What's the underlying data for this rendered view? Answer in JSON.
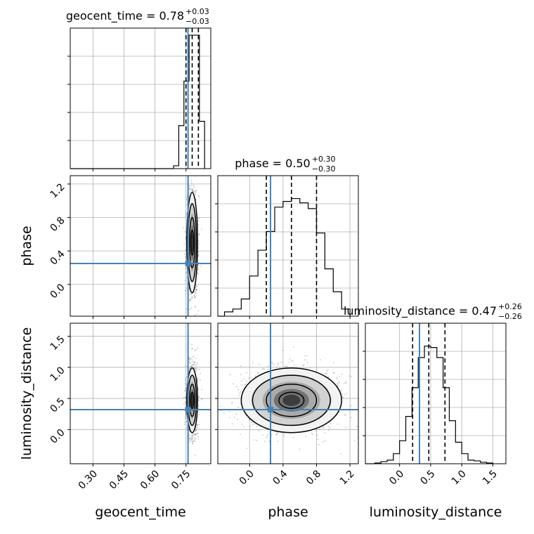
{
  "chart_data": {
    "type": "corner",
    "parameters": [
      "geocent_time",
      "phase",
      "luminosity_distance"
    ],
    "truths": {
      "geocent_time": 0.76,
      "phase": 0.25,
      "luminosity_distance": 0.32
    },
    "colors": {
      "truth": "#4682b4",
      "hist": "#000000",
      "grid": "#b0b0b0",
      "scatter": "#555555"
    },
    "titles": {
      "geocent_time": {
        "text": "geocent_time = 0.78",
        "plus": "+0.03",
        "minus": "−0.03"
      },
      "phase": {
        "text": "phase = 0.50",
        "plus": "+0.30",
        "minus": "−0.30"
      },
      "luminosity_distance": {
        "text": "luminosity_distance = 0.47",
        "plus": "+0.26",
        "minus": "−0.26"
      }
    },
    "ranges": {
      "geocent_time": [
        0.19,
        0.87
      ],
      "phase": [
        -0.38,
        1.3
      ],
      "luminosity_distance": [
        -0.55,
        1.71
      ]
    },
    "ticks": {
      "geocent_time": {
        "values": [
          0.3,
          0.45,
          0.6,
          0.75
        ],
        "labels": [
          "0.30",
          "0.45",
          "0.60",
          "0.75"
        ]
      },
      "phase": {
        "values": [
          0.0,
          0.4,
          0.8,
          1.2
        ],
        "labels": [
          "0.0",
          "0.4",
          "0.8",
          "1.2"
        ]
      },
      "luminosity_distance": {
        "values": [
          0.0,
          0.5,
          1.0,
          1.5
        ],
        "labels": [
          "0.0",
          "0.5",
          "1.0",
          "1.5"
        ]
      }
    },
    "quantiles": {
      "geocent_time": [
        0.75,
        0.78,
        0.81
      ],
      "phase": [
        0.2,
        0.5,
        0.8
      ],
      "luminosity_distance": [
        0.21,
        0.47,
        0.73
      ]
    },
    "histograms": {
      "geocent_time": {
        "edges": [
          0.69,
          0.715,
          0.74,
          0.765,
          0.79,
          0.815,
          0.84
        ],
        "counts": [
          0.02,
          0.3,
          0.61,
          0.93,
          0.93,
          0.33
        ]
      },
      "phase": {
        "edges": [
          -0.3,
          -0.2,
          -0.1,
          0.0,
          0.1,
          0.2,
          0.3,
          0.4,
          0.5,
          0.6,
          0.7,
          0.8,
          0.9,
          1.0,
          1.1,
          1.2
        ],
        "counts": [
          0.03,
          0.05,
          0.12,
          0.28,
          0.46,
          0.59,
          0.76,
          0.8,
          0.82,
          0.79,
          0.75,
          0.58,
          0.33,
          0.17,
          0.05
        ]
      },
      "luminosity_distance": {
        "edges": [
          -0.4,
          -0.3,
          -0.2,
          -0.1,
          0.0,
          0.1,
          0.2,
          0.3,
          0.4,
          0.5,
          0.6,
          0.7,
          0.8,
          0.9,
          1.0,
          1.1,
          1.2,
          1.3,
          1.4,
          1.5
        ],
        "counts": [
          0.005,
          0.015,
          0.025,
          0.07,
          0.16,
          0.33,
          0.53,
          0.74,
          0.82,
          0.81,
          0.74,
          0.53,
          0.3,
          0.15,
          0.07,
          0.025,
          0.02,
          0.01,
          0.005
        ]
      }
    },
    "posterior_2d": {
      "geocent_time|phase": {
        "x_mean": 0.78,
        "x_sd": 0.013,
        "y_mean": 0.5,
        "y_sd": 0.3
      },
      "geocent_time|luminosity_distance": {
        "x_mean": 0.78,
        "x_sd": 0.013,
        "y_mean": 0.47,
        "y_sd": 0.26
      },
      "phase|luminosity_distance": {
        "x_mean": 0.5,
        "x_sd": 0.3,
        "y_mean": 0.47,
        "y_sd": 0.26
      }
    }
  }
}
